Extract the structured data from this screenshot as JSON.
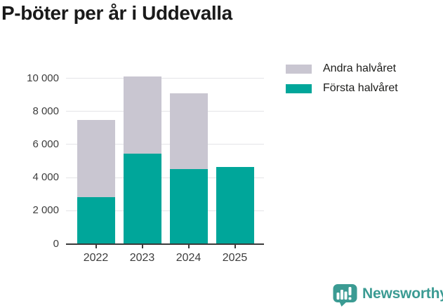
{
  "title": "P-böter per år i Uddevalla",
  "chart_data": {
    "type": "bar",
    "stacked": true,
    "title": "P-böter per år i Uddevalla",
    "categories": [
      "2022",
      "2023",
      "2024",
      "2025"
    ],
    "series": [
      {
        "name": "Första halvåret",
        "color": "#00a69a",
        "values": [
          2800,
          5450,
          4500,
          4650
        ]
      },
      {
        "name": "Andra halvåret",
        "color": "#c9c6d1",
        "values": [
          4700,
          4650,
          4600,
          0
        ]
      }
    ],
    "totals": [
      7500,
      10100,
      9100,
      4650
    ],
    "xlabel": "",
    "ylabel": "",
    "ylim": [
      0,
      10000
    ],
    "grid": "horizontal",
    "legend_position": "top-right",
    "y_ticks": [
      {
        "value": 0,
        "label": "0"
      },
      {
        "value": 2000,
        "label": "2 000"
      },
      {
        "value": 4000,
        "label": "4 000"
      },
      {
        "value": 6000,
        "label": "6 000"
      },
      {
        "value": 8000,
        "label": "8 000"
      },
      {
        "value": 10000,
        "label": "10 000"
      }
    ]
  },
  "legend": {
    "items": [
      {
        "label": "Andra halvåret",
        "color": "#c9c6d1"
      },
      {
        "label": "Första halvåret",
        "color": "#00a69a"
      }
    ]
  },
  "branding": {
    "name": "Newsworthy",
    "color": "#3b9b93"
  }
}
